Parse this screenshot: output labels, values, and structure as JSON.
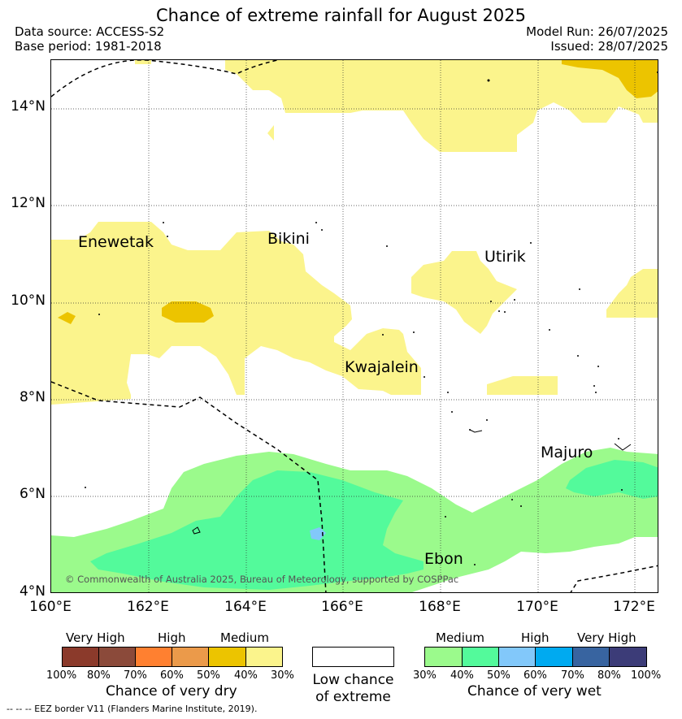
{
  "header": {
    "title": "Chance of extreme rainfall for August 2025",
    "data_source": "Data source: ACCESS-S2",
    "base_period": "Base period: 1981-2018",
    "model_run": "Model Run: 26/07/2025",
    "issued": "Issued: 28/07/2025"
  },
  "map": {
    "lat_labels": [
      "14°N",
      "12°N",
      "10°N",
      "8°N",
      "6°N",
      "4°N"
    ],
    "lon_labels": [
      "160°E",
      "162°E",
      "164°E",
      "166°E",
      "168°E",
      "170°E",
      "172°E"
    ],
    "places": [
      "Enewetak",
      "Bikini",
      "Utirik",
      "Kwajalein",
      "Majuro",
      "Ebon"
    ],
    "copyright": "© Commonwealth of Australia 2025, Bureau of Meteorology, supported by COSPPac"
  },
  "legend": {
    "dry": {
      "bands": [
        "Very High",
        "High",
        "Medium"
      ],
      "ticks": [
        "100%",
        "80%",
        "70%",
        "60%",
        "50%",
        "40%",
        "30%"
      ],
      "colors": [
        "#8b3a2b",
        "#8b4a3a",
        "#ff8030",
        "#eb9a4a",
        "#ecc400",
        "#fbf48c"
      ],
      "caption": "Chance of very dry"
    },
    "low": {
      "caption_line1": "Low chance",
      "caption_line2": "of extreme",
      "color": "#ffffff"
    },
    "wet": {
      "bands": [
        "Medium",
        "High",
        "Very High"
      ],
      "ticks": [
        "30%",
        "40%",
        "50%",
        "60%",
        "70%",
        "80%",
        "100%"
      ],
      "colors": [
        "#9bfa8c",
        "#53fa9b",
        "#82c8fa",
        "#00aaf0",
        "#3864a0",
        "#3c3c78"
      ],
      "caption": "Chance of very wet"
    },
    "eez_note": "-- -- -- EEZ border V11 (Flanders Marine Institute, 2019)."
  }
}
